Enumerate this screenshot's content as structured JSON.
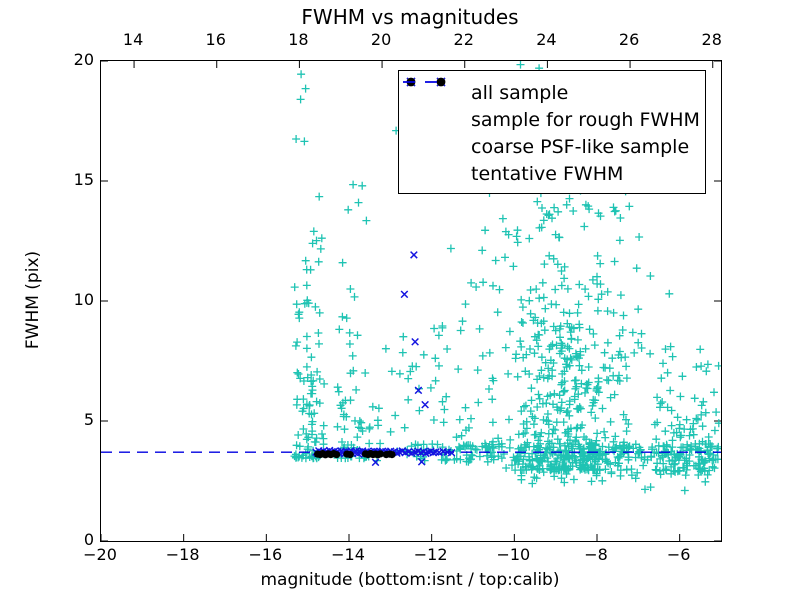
{
  "chart_data": {
    "type": "scatter",
    "title": "FWHM vs magnitudes",
    "xlabel": "magnitude (bottom:isnt / top:calib)",
    "ylabel": "FWHM (pix)",
    "xlim": [
      -20,
      -5
    ],
    "ylim": [
      0,
      20
    ],
    "top_xlim": [
      13.2,
      28.2
    ],
    "xticks_bottom": [
      -20,
      -18,
      -16,
      -14,
      -12,
      -10,
      -8,
      -6
    ],
    "xticks_top": [
      14,
      16,
      18,
      20,
      22,
      24,
      26,
      28
    ],
    "yticks": [
      0,
      5,
      10,
      15,
      20
    ],
    "grid": false,
    "legend_position": "upper center-right inside",
    "tentative_fwhm": 3.7,
    "series": [
      {
        "name": "all sample",
        "marker": "plus",
        "color": "#1fc3b3",
        "clusters": [
          {
            "seed": 11,
            "n": 95,
            "x": [
              -15.32,
              -14.6
            ],
            "y": [
              3.45,
              13.0
            ],
            "ybias": 2.3
          },
          {
            "seed": 22,
            "n": 58,
            "x": [
              -14.28,
              -13.42
            ],
            "y": [
              3.45,
              12.5
            ],
            "ybias": 2.3
          },
          {
            "seed": 33,
            "n": 45,
            "x": [
              -13.42,
              -11.4
            ],
            "y": [
              3.35,
              9.0
            ],
            "ybias": 2.1
          },
          {
            "seed": 44,
            "n": 230,
            "x": [
              -12.95,
              -5.1
            ],
            "y": [
              3.35,
              4.05
            ],
            "ybias": 1.0,
            "xbias": 0.75
          },
          {
            "seed": 55,
            "n": 330,
            "x": [
              -10.35,
              -7.0
            ],
            "y": [
              2.95,
              7.6
            ],
            "ybias": 1.9,
            "xcenter": true
          },
          {
            "seed": 66,
            "n": 130,
            "x": [
              -10.5,
              -6.6
            ],
            "y": [
              7.6,
              12.6
            ],
            "ybias": 1.6,
            "xcenter": true
          },
          {
            "seed": 77,
            "n": 40,
            "x": [
              -10.4,
              -6.9
            ],
            "y": [
              12.6,
              15.3
            ],
            "ybias": 1.3
          },
          {
            "seed": 88,
            "n": 55,
            "x": [
              -9.9,
              -5.15
            ],
            "y": [
              2.1,
              3.35
            ],
            "ybias": 0.7
          },
          {
            "seed": 99,
            "n": 88,
            "x": [
              -6.6,
              -5.05
            ],
            "y": [
              2.9,
              5.6
            ],
            "ybias": 1.6
          },
          {
            "seed": 110,
            "n": 22,
            "x": [
              -6.6,
              -5.05
            ],
            "y": [
              5.6,
              8.2
            ],
            "ybias": 1.4
          },
          {
            "seed": 121,
            "n": 30,
            "x": [
              -11.4,
              -10.35
            ],
            "y": [
              3.3,
              7.5
            ],
            "ybias": 2.0
          },
          {
            "seed": 132,
            "n": 14,
            "x": [
              -11.6,
              -10.4
            ],
            "y": [
              7.5,
              13.5
            ],
            "ybias": 1.2
          }
        ],
        "points": [
          [
            -15.16,
            19.45
          ],
          [
            -15.05,
            18.85
          ],
          [
            -15.17,
            18.4
          ],
          [
            -15.28,
            16.75
          ],
          [
            -15.08,
            16.65
          ],
          [
            -14.72,
            14.35
          ],
          [
            -14.88,
            12.4
          ],
          [
            -14.93,
            11.3
          ],
          [
            -15.02,
            10.65
          ],
          [
            -13.9,
            14.85
          ],
          [
            -13.68,
            14.8
          ],
          [
            -13.77,
            14.1
          ],
          [
            -14.02,
            13.8
          ],
          [
            -13.58,
            13.35
          ],
          [
            -12.86,
            17.1
          ],
          [
            -9.85,
            19.85
          ],
          [
            -9.4,
            19.7
          ],
          [
            -6.25,
            10.3
          ],
          [
            -10.6,
            14.5
          ],
          [
            -9.2,
            15.1
          ],
          [
            -8.4,
            14.6
          ],
          [
            -7.6,
            13.9
          ]
        ]
      },
      {
        "name": "sample for rough FWHM",
        "marker": "x",
        "color": "#1414e0",
        "points": [
          [
            -14.8,
            3.7
          ],
          [
            -14.76,
            3.64
          ],
          [
            -14.73,
            3.76
          ],
          [
            -14.69,
            3.69
          ],
          [
            -14.66,
            3.62
          ],
          [
            -14.62,
            3.74
          ],
          [
            -14.58,
            3.68
          ],
          [
            -14.54,
            3.72
          ],
          [
            -14.5,
            3.65
          ],
          [
            -14.47,
            3.77
          ],
          [
            -14.43,
            3.7
          ],
          [
            -14.39,
            3.63
          ],
          [
            -14.35,
            3.74
          ],
          [
            -14.31,
            3.68
          ],
          [
            -14.27,
            3.72
          ],
          [
            -14.23,
            3.66
          ],
          [
            -14.19,
            3.75
          ],
          [
            -14.15,
            3.69
          ],
          [
            -14.11,
            3.63
          ],
          [
            -14.07,
            3.73
          ],
          [
            -14.03,
            3.67
          ],
          [
            -13.99,
            3.71
          ],
          [
            -13.95,
            3.76
          ],
          [
            -13.91,
            3.64
          ],
          [
            -13.87,
            3.7
          ],
          [
            -13.83,
            3.74
          ],
          [
            -13.79,
            3.66
          ],
          [
            -13.75,
            3.72
          ],
          [
            -13.71,
            3.68
          ],
          [
            -13.67,
            3.75
          ],
          [
            -13.63,
            3.62
          ],
          [
            -13.59,
            3.7
          ],
          [
            -13.55,
            3.73
          ],
          [
            -13.51,
            3.67
          ],
          [
            -13.47,
            3.71
          ],
          [
            -13.43,
            3.65
          ],
          [
            -13.39,
            3.74
          ],
          [
            -13.35,
            3.69
          ],
          [
            -13.31,
            3.72
          ],
          [
            -13.27,
            3.66
          ],
          [
            -13.23,
            3.7
          ],
          [
            -13.19,
            3.74
          ],
          [
            -13.15,
            3.68
          ],
          [
            -13.11,
            3.72
          ],
          [
            -13.07,
            3.65
          ],
          [
            -13.03,
            3.7
          ],
          [
            -12.99,
            3.74
          ],
          [
            -12.95,
            3.68
          ],
          [
            -12.9,
            3.72
          ],
          [
            -12.84,
            3.66
          ],
          [
            -12.78,
            3.71
          ],
          [
            -12.71,
            3.75
          ],
          [
            -12.64,
            3.68
          ],
          [
            -12.56,
            3.72
          ],
          [
            -12.48,
            3.66
          ],
          [
            -12.4,
            3.7
          ],
          [
            -12.33,
            3.74
          ],
          [
            -12.26,
            3.68
          ],
          [
            -12.2,
            3.72
          ],
          [
            -12.14,
            3.65
          ],
          [
            -12.08,
            3.7
          ],
          [
            -12.02,
            3.74
          ],
          [
            -11.96,
            3.68
          ],
          [
            -11.9,
            3.71
          ],
          [
            -11.82,
            3.69
          ],
          [
            -11.72,
            3.73
          ],
          [
            -11.62,
            3.7
          ],
          [
            -11.52,
            3.68
          ],
          [
            -12.43,
            11.92
          ],
          [
            -12.66,
            10.28
          ],
          [
            -12.4,
            8.3
          ],
          [
            -12.32,
            6.28
          ],
          [
            -12.16,
            5.68
          ],
          [
            -12.24,
            3.3
          ],
          [
            -13.36,
            3.28
          ]
        ]
      },
      {
        "name": "coarse PSF-like sample",
        "marker": "dot",
        "color": "#000000",
        "points": [
          [
            -14.76,
            3.62
          ],
          [
            -14.7,
            3.6
          ],
          [
            -14.64,
            3.64
          ],
          [
            -14.57,
            3.59
          ],
          [
            -14.5,
            3.63
          ],
          [
            -14.44,
            3.6
          ],
          [
            -14.37,
            3.64
          ],
          [
            -14.3,
            3.6
          ],
          [
            -14.05,
            3.62
          ],
          [
            -13.97,
            3.6
          ],
          [
            -13.6,
            3.63
          ],
          [
            -13.54,
            3.6
          ],
          [
            -13.48,
            3.64
          ],
          [
            -13.42,
            3.6
          ],
          [
            -13.36,
            3.62
          ],
          [
            -13.3,
            3.59
          ],
          [
            -13.24,
            3.63
          ],
          [
            -13.1,
            3.6
          ],
          [
            -13.02,
            3.62
          ],
          [
            -12.96,
            3.6
          ]
        ]
      },
      {
        "name": "tentative FWHM",
        "marker": "dash",
        "color": "#0000e0",
        "line_y": 3.7
      }
    ]
  }
}
